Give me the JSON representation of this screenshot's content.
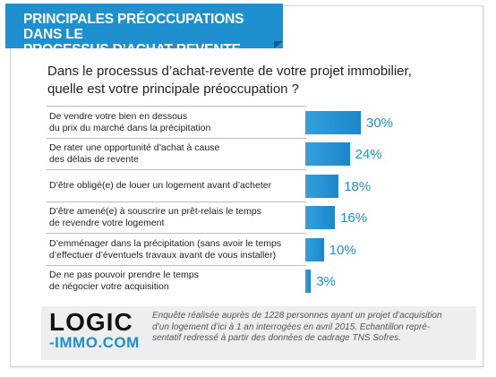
{
  "header": {
    "title_lines": [
      "PRINCIPALES PRÉOCCUPATIONS DANS LE",
      "PROCESSUS D’ACHAT-REVENTE"
    ]
  },
  "question_lines": [
    "Dans le processus d’achat-revente de votre projet immobilier,",
    "quelle est votre principale préoccupation ?"
  ],
  "chart_data": {
    "type": "bar",
    "orientation": "horizontal",
    "categories": [
      [
        "De vendre votre bien en dessous",
        "du prix du marché dans la précipitation"
      ],
      [
        "De rater une opportunité d’achat à cause",
        "des délais de revente"
      ],
      [
        "D’être obligé(e) de louer un logement avant d’acheter"
      ],
      [
        "D’être amené(e) à souscrire un prêt-relais le temps",
        "de revendre votre logement"
      ],
      [
        "D’emménager dans la précipitation (sans avoir le temps",
        "d’effectuer d’éventuels travaux avant de vous installer)"
      ],
      [
        "De ne pas pouvoir prendre le temps",
        "de négocier votre acquisition"
      ]
    ],
    "values": [
      30,
      24,
      18,
      16,
      10,
      3
    ],
    "value_labels": [
      "30%",
      "24%",
      "18%",
      "16%",
      "10%",
      "3%"
    ],
    "unit": "%",
    "bar_color": "#1e90d0",
    "xlim": [
      0,
      30
    ]
  },
  "footer": {
    "logo_top": "LOGIC",
    "logo_bottom": "-IMMO.COM",
    "note_lines": [
      "Enquête réalisée auprès de 1228 personnes ayant un projet d’acquisition",
      "d’un logement d’ici à 1 an interrogées en avril 2015. Echantillon repré-",
      "sentatif redressé à partir des données de cadrage TNS Sofres."
    ]
  },
  "colors": {
    "accent": "#1e90d0",
    "footer_bg": "#eceeef"
  }
}
